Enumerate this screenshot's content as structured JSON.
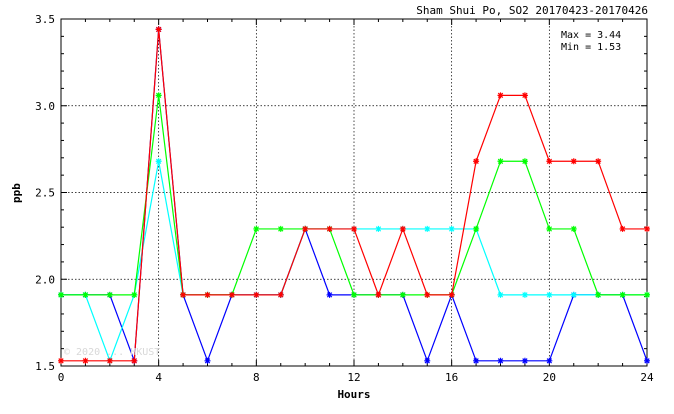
{
  "chart_data": {
    "type": "line",
    "title": "Sham Shui Po, SO2 20170423-20170426",
    "xlabel": "Hours",
    "ylabel": "ppb",
    "xlim": [
      0,
      24
    ],
    "ylim": [
      1.5,
      3.5
    ],
    "x_ticks": [
      0,
      4,
      8,
      12,
      16,
      20,
      24
    ],
    "y_ticks": [
      1.5,
      2.0,
      2.5,
      3.0,
      3.5
    ],
    "x_tick_labels": [
      "0",
      "4",
      "8",
      "12",
      "16",
      "20",
      "24"
    ],
    "y_tick_labels": [
      "1.5",
      "2.0",
      "2.5",
      "3.0",
      "3.5"
    ],
    "grid": true,
    "legend": "none",
    "stats": {
      "max_label": "Max = 3.44",
      "min_label": "Min = 1.53"
    },
    "watermark": "© 2020 ... HKUST",
    "x": [
      0,
      1,
      2,
      3,
      4,
      5,
      6,
      7,
      8,
      9,
      10,
      11,
      12,
      13,
      14,
      15,
      16,
      17,
      18,
      19,
      20,
      21,
      22,
      23,
      24
    ],
    "series": [
      {
        "color": "#0000ff",
        "values": [
          1.91,
          1.91,
          1.91,
          1.53,
          3.44,
          1.91,
          1.53,
          1.91,
          1.91,
          1.91,
          2.29,
          1.91,
          1.91,
          1.91,
          1.91,
          1.53,
          1.91,
          1.53,
          1.53,
          1.53,
          1.53,
          1.91,
          1.91,
          1.91,
          1.53
        ]
      },
      {
        "color": "#00ffff",
        "values": [
          1.91,
          1.91,
          1.53,
          1.91,
          2.68,
          1.91,
          1.91,
          1.91,
          1.91,
          1.91,
          2.29,
          2.29,
          2.29,
          2.29,
          2.29,
          2.29,
          2.29,
          2.29,
          1.91,
          1.91,
          1.91,
          1.91,
          1.91,
          1.91,
          1.91
        ]
      },
      {
        "color": "#00ff00",
        "values": [
          1.91,
          1.91,
          1.91,
          1.91,
          3.06,
          1.91,
          1.91,
          1.91,
          2.29,
          2.29,
          2.29,
          2.29,
          1.91,
          1.91,
          1.91,
          1.91,
          1.91,
          2.29,
          2.68,
          2.68,
          2.29,
          2.29,
          1.91,
          1.91,
          1.91
        ]
      },
      {
        "color": "#ff0000",
        "values": [
          1.53,
          1.53,
          1.53,
          1.53,
          3.44,
          1.91,
          1.91,
          1.91,
          1.91,
          1.91,
          2.29,
          2.29,
          2.29,
          1.91,
          2.29,
          1.91,
          1.91,
          2.68,
          3.06,
          3.06,
          2.68,
          2.68,
          2.68,
          2.29,
          2.29
        ]
      }
    ]
  }
}
